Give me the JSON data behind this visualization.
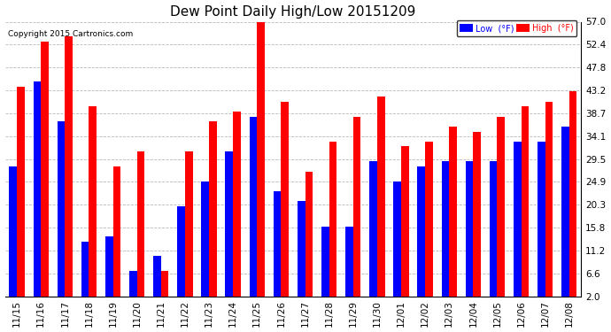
{
  "title": "Dew Point Daily High/Low 20151209",
  "copyright": "Copyright 2015 Cartronics.com",
  "dates": [
    "11/15",
    "11/16",
    "11/17",
    "11/18",
    "11/19",
    "11/20",
    "11/21",
    "11/22",
    "11/23",
    "11/24",
    "11/25",
    "11/26",
    "11/27",
    "11/28",
    "11/29",
    "11/30",
    "12/01",
    "12/02",
    "12/03",
    "12/04",
    "12/05",
    "12/06",
    "12/07",
    "12/08"
  ],
  "low": [
    28,
    45,
    37,
    13,
    14,
    7,
    10,
    20,
    25,
    31,
    38,
    23,
    21,
    16,
    16,
    29,
    25,
    28,
    29,
    29,
    29,
    33,
    33,
    36
  ],
  "high": [
    44,
    53,
    54,
    40,
    28,
    31,
    7,
    31,
    37,
    39,
    57,
    41,
    27,
    33,
    38,
    42,
    32,
    33,
    36,
    35,
    38,
    40,
    41,
    43
  ],
  "low_color": "#0000ff",
  "high_color": "#ff0000",
  "ylim_min": 2.0,
  "ylim_max": 57.0,
  "yticks": [
    2.0,
    6.6,
    11.2,
    15.8,
    20.3,
    24.9,
    29.5,
    34.1,
    38.7,
    43.2,
    47.8,
    52.4,
    57.0
  ],
  "background_color": "#ffffff",
  "grid_color": "#999999",
  "bar_width": 0.32,
  "legend_low_label": "Low  (°F)",
  "legend_high_label": "High  (°F)"
}
